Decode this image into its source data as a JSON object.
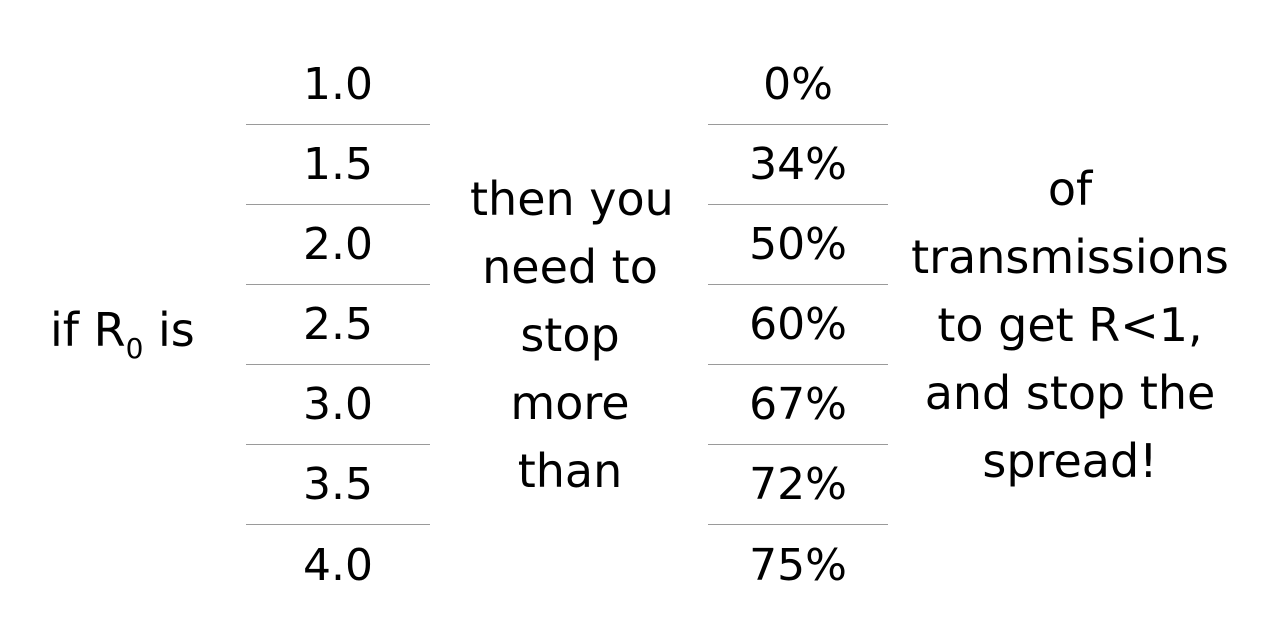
{
  "left_label": {
    "prefix": "if R",
    "subscript": "0",
    "suffix": " is"
  },
  "r0_values": [
    "1.0",
    "1.5",
    "2.0",
    "2.5",
    "3.0",
    "3.5",
    "4.0"
  ],
  "middle_text": [
    "then you",
    "need to",
    "stop",
    "more",
    "than"
  ],
  "percent_values": [
    "0%",
    "34%",
    "50%",
    "60%",
    "67%",
    "72%",
    "75%"
  ],
  "right_text": [
    "of",
    "transmissions",
    "to get R<1,",
    "and stop the",
    "spread!"
  ],
  "colors": {
    "text": "#000000",
    "divider": "#9a9a9a",
    "background": "#ffffff"
  }
}
